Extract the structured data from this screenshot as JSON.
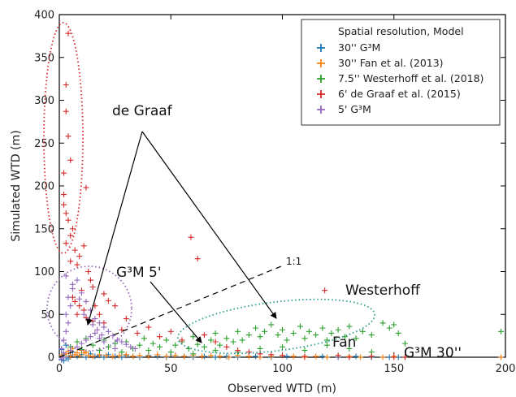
{
  "chart_data": {
    "type": "scatter",
    "xlabel": "Observed WTD (m)",
    "ylabel": "Simulated WTD (m)",
    "xlim": [
      0,
      200
    ],
    "ylim": [
      0,
      400
    ],
    "x_ticks": [
      0,
      50,
      100,
      150,
      200
    ],
    "y_ticks": [
      0,
      50,
      100,
      150,
      200,
      250,
      300,
      350,
      400
    ],
    "grid": false,
    "legend": {
      "title": "Spatial resolution, Model",
      "placement": "top-right",
      "entries": [
        {
          "label": "30'' G³M",
          "color": "#1f77b4"
        },
        {
          "label": "30'' Fan et al. (2013)",
          "color": "#ff7f0e"
        },
        {
          "label": "7.5'' Westerhoff et al. (2018)",
          "color": "#2ca02c"
        },
        {
          "label": "6' de Graaf et al. (2015)",
          "color": "#d62728"
        },
        {
          "label": "5' G³M",
          "color": "#9467bd"
        }
      ]
    },
    "series": [
      {
        "name": "30'' G³M",
        "color": "#1f77b4",
        "points": [
          [
            1,
            1
          ],
          [
            2,
            3
          ],
          [
            3,
            0
          ],
          [
            5,
            2
          ],
          [
            6,
            6
          ],
          [
            8,
            1
          ],
          [
            10,
            3
          ],
          [
            12,
            0
          ],
          [
            14,
            4
          ],
          [
            16,
            1
          ],
          [
            18,
            2
          ],
          [
            20,
            0
          ],
          [
            22,
            3
          ],
          [
            25,
            1
          ],
          [
            28,
            0
          ],
          [
            30,
            2
          ],
          [
            33,
            1
          ],
          [
            36,
            0
          ],
          [
            40,
            2
          ],
          [
            44,
            1
          ],
          [
            48,
            0
          ],
          [
            52,
            2
          ],
          [
            56,
            1
          ],
          [
            60,
            0
          ],
          [
            65,
            1
          ],
          [
            70,
            0
          ],
          [
            75,
            1
          ],
          [
            80,
            0
          ],
          [
            88,
            1
          ],
          [
            95,
            0
          ],
          [
            102,
            1
          ],
          [
            110,
            0
          ],
          [
            118,
            1
          ],
          [
            125,
            0
          ],
          [
            133,
            1
          ],
          [
            140,
            0
          ],
          [
            148,
            0
          ],
          [
            152,
            0
          ],
          [
            1,
            9
          ],
          [
            3,
            14
          ],
          [
            2,
            -4
          ],
          [
            4,
            -2
          ],
          [
            1,
            -3
          ]
        ]
      },
      {
        "name": "30'' Fan et al. (2013)",
        "color": "#ff7f0e",
        "points": [
          [
            1,
            2
          ],
          [
            3,
            4
          ],
          [
            5,
            1
          ],
          [
            7,
            3
          ],
          [
            9,
            2
          ],
          [
            11,
            5
          ],
          [
            13,
            2
          ],
          [
            15,
            1
          ],
          [
            18,
            3
          ],
          [
            21,
            2
          ],
          [
            24,
            1
          ],
          [
            27,
            2
          ],
          [
            30,
            3
          ],
          [
            33,
            1
          ],
          [
            36,
            2
          ],
          [
            40,
            1
          ],
          [
            44,
            3
          ],
          [
            48,
            1
          ],
          [
            52,
            2
          ],
          [
            56,
            1
          ],
          [
            60,
            2
          ],
          [
            64,
            1
          ],
          [
            68,
            2
          ],
          [
            72,
            1
          ],
          [
            76,
            0
          ],
          [
            80,
            2
          ],
          [
            85,
            1
          ],
          [
            90,
            0
          ],
          [
            95,
            1
          ],
          [
            100,
            2
          ],
          [
            105,
            1
          ],
          [
            110,
            0
          ],
          [
            115,
            1
          ],
          [
            120,
            0
          ],
          [
            125,
            2
          ],
          [
            130,
            1
          ],
          [
            135,
            0
          ],
          [
            140,
            1
          ],
          [
            145,
            0
          ],
          [
            150,
            1
          ],
          [
            155,
            0
          ],
          [
            198,
            0
          ],
          [
            4,
            7
          ],
          [
            6,
            10
          ],
          [
            8,
            5
          ],
          [
            10,
            8
          ],
          [
            12,
            6
          ]
        ]
      },
      {
        "name": "7.5'' Westerhoff et al. (2018)",
        "color": "#2ca02c",
        "points": [
          [
            5,
            12
          ],
          [
            8,
            18
          ],
          [
            10,
            9
          ],
          [
            12,
            22
          ],
          [
            15,
            14
          ],
          [
            18,
            8
          ],
          [
            20,
            20
          ],
          [
            22,
            12
          ],
          [
            25,
            16
          ],
          [
            28,
            6
          ],
          [
            30,
            18
          ],
          [
            33,
            10
          ],
          [
            36,
            14
          ],
          [
            38,
            22
          ],
          [
            40,
            8
          ],
          [
            42,
            16
          ],
          [
            45,
            12
          ],
          [
            48,
            20
          ],
          [
            50,
            6
          ],
          [
            52,
            14
          ],
          [
            55,
            18
          ],
          [
            58,
            10
          ],
          [
            60,
            24
          ],
          [
            62,
            15
          ],
          [
            65,
            12
          ],
          [
            68,
            20
          ],
          [
            70,
            28
          ],
          [
            72,
            14
          ],
          [
            75,
            22
          ],
          [
            78,
            18
          ],
          [
            80,
            30
          ],
          [
            82,
            20
          ],
          [
            85,
            26
          ],
          [
            88,
            34
          ],
          [
            90,
            24
          ],
          [
            92,
            30
          ],
          [
            95,
            38
          ],
          [
            98,
            26
          ],
          [
            100,
            32
          ],
          [
            102,
            20
          ],
          [
            105,
            28
          ],
          [
            108,
            36
          ],
          [
            110,
            22
          ],
          [
            112,
            30
          ],
          [
            115,
            26
          ],
          [
            118,
            34
          ],
          [
            120,
            20
          ],
          [
            122,
            28
          ],
          [
            125,
            32
          ],
          [
            128,
            24
          ],
          [
            130,
            36
          ],
          [
            133,
            22
          ],
          [
            136,
            30
          ],
          [
            140,
            26
          ],
          [
            145,
            40
          ],
          [
            148,
            34
          ],
          [
            150,
            38
          ],
          [
            152,
            28
          ],
          [
            155,
            16
          ],
          [
            60,
            4
          ],
          [
            70,
            8
          ],
          [
            80,
            6
          ],
          [
            90,
            10
          ],
          [
            100,
            12
          ],
          [
            110,
            8
          ],
          [
            120,
            14
          ],
          [
            130,
            10
          ],
          [
            140,
            6
          ],
          [
            198,
            30
          ]
        ]
      },
      {
        "name": "6' de Graaf et al. (2015)",
        "color": "#d62728",
        "points": [
          [
            4,
            378
          ],
          [
            3,
            318
          ],
          [
            3,
            287
          ],
          [
            4,
            258
          ],
          [
            5,
            230
          ],
          [
            2,
            215
          ],
          [
            2,
            190
          ],
          [
            2,
            178
          ],
          [
            3,
            168
          ],
          [
            4,
            160
          ],
          [
            6,
            150
          ],
          [
            5,
            142
          ],
          [
            3,
            133
          ],
          [
            7,
            125
          ],
          [
            9,
            118
          ],
          [
            5,
            112
          ],
          [
            8,
            108
          ],
          [
            12,
            198
          ],
          [
            11,
            130
          ],
          [
            13,
            100
          ],
          [
            14,
            90
          ],
          [
            15,
            82
          ],
          [
            10,
            78
          ],
          [
            6,
            70
          ],
          [
            7,
            65
          ],
          [
            9,
            60
          ],
          [
            11,
            55
          ],
          [
            8,
            50
          ],
          [
            12,
            46
          ],
          [
            15,
            42
          ],
          [
            18,
            50
          ],
          [
            20,
            40
          ],
          [
            25,
            60
          ],
          [
            28,
            32
          ],
          [
            30,
            45
          ],
          [
            35,
            28
          ],
          [
            40,
            35
          ],
          [
            45,
            24
          ],
          [
            50,
            30
          ],
          [
            55,
            20
          ],
          [
            59,
            140
          ],
          [
            62,
            115
          ],
          [
            65,
            26
          ],
          [
            70,
            18
          ],
          [
            75,
            12
          ],
          [
            80,
            8
          ],
          [
            85,
            6
          ],
          [
            90,
            4
          ],
          [
            95,
            3
          ],
          [
            100,
            2
          ],
          [
            110,
            1
          ],
          [
            119,
            78
          ],
          [
            125,
            2
          ],
          [
            130,
            0
          ],
          [
            140,
            1
          ],
          [
            150,
            0
          ],
          [
            155,
            0
          ],
          [
            20,
            74
          ],
          [
            16,
            60
          ],
          [
            22,
            66
          ]
        ]
      },
      {
        "name": "5' G³M",
        "color": "#9467bd",
        "points": [
          [
            1,
            10
          ],
          [
            2,
            20
          ],
          [
            3,
            30
          ],
          [
            4,
            40
          ],
          [
            3,
            50
          ],
          [
            5,
            60
          ],
          [
            4,
            70
          ],
          [
            6,
            80
          ],
          [
            8,
            90
          ],
          [
            10,
            75
          ],
          [
            12,
            65
          ],
          [
            14,
            55
          ],
          [
            16,
            45
          ],
          [
            18,
            40
          ],
          [
            20,
            35
          ],
          [
            22,
            30
          ],
          [
            24,
            25
          ],
          [
            26,
            20
          ],
          [
            28,
            18
          ],
          [
            30,
            15
          ],
          [
            32,
            12
          ],
          [
            34,
            10
          ],
          [
            2,
            5
          ],
          [
            5,
            8
          ],
          [
            8,
            12
          ],
          [
            10,
            16
          ],
          [
            12,
            20
          ],
          [
            14,
            24
          ],
          [
            16,
            28
          ],
          [
            18,
            22
          ],
          [
            20,
            18
          ],
          [
            25,
            10
          ],
          [
            3,
            95
          ],
          [
            6,
            85
          ],
          [
            9,
            68
          ],
          [
            11,
            50
          ],
          [
            13,
            44
          ],
          [
            15,
            38
          ],
          [
            17,
            32
          ],
          [
            19,
            26
          ],
          [
            1,
            -2
          ],
          [
            2,
            0
          ]
        ]
      }
    ],
    "annotations": [
      {
        "text": "de Graaf"
      },
      {
        "text": "G³M 5'"
      },
      {
        "text": "1:1"
      },
      {
        "text": "Westerhoff"
      },
      {
        "text": "Fan"
      },
      {
        "text": "G³M 30''"
      }
    ]
  }
}
